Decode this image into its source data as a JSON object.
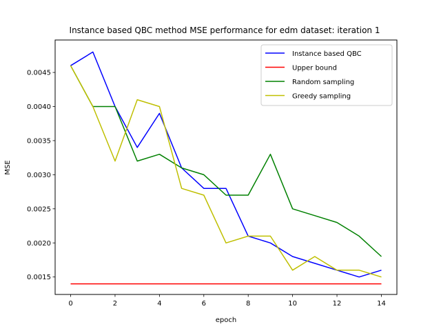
{
  "chart_data": {
    "type": "line",
    "title": "Instance based QBC method MSE performance for edm dataset: iteration 1",
    "xlabel": "epoch",
    "ylabel": "MSE",
    "x": [
      0,
      1,
      2,
      3,
      4,
      5,
      6,
      7,
      8,
      9,
      10,
      11,
      12,
      13,
      14
    ],
    "xlim": [
      -0.7,
      14.7
    ],
    "ylim": [
      0.001244,
      0.004976
    ],
    "xticks": [
      0,
      2,
      4,
      6,
      8,
      10,
      12,
      14
    ],
    "xtick_labels": [
      "0",
      "2",
      "4",
      "6",
      "8",
      "10",
      "12",
      "14"
    ],
    "yticks": [
      0.0015,
      0.002,
      0.0025,
      0.003,
      0.0035,
      0.004,
      0.0045
    ],
    "ytick_labels": [
      "0.0015",
      "0.0020",
      "0.0025",
      "0.0030",
      "0.0035",
      "0.0040",
      "0.0045"
    ],
    "grid": false,
    "legend_position": "top-right",
    "series": [
      {
        "name": "Instance based QBC",
        "color": "#0000ff",
        "values": [
          0.0046,
          0.0048,
          0.004,
          0.0034,
          0.0039,
          0.0031,
          0.0028,
          0.0028,
          0.0021,
          0.002,
          0.0018,
          0.0017,
          0.0016,
          0.0015,
          0.0016
        ]
      },
      {
        "name": "Upper bound",
        "color": "#ff0000",
        "values": [
          0.0014,
          0.0014,
          0.0014,
          0.0014,
          0.0014,
          0.0014,
          0.0014,
          0.0014,
          0.0014,
          0.0014,
          0.0014,
          0.0014,
          0.0014,
          0.0014,
          0.0014
        ]
      },
      {
        "name": "Random sampling",
        "color": "#008000",
        "values": [
          0.0046,
          0.004,
          0.004,
          0.0032,
          0.0033,
          0.0031,
          0.003,
          0.0027,
          0.0027,
          0.0033,
          0.0025,
          0.0024,
          0.0023,
          0.0021,
          0.0018
        ]
      },
      {
        "name": "Greedy sampling",
        "color": "#bfbf00",
        "values": [
          0.0046,
          0.004,
          0.0032,
          0.0041,
          0.004,
          0.0028,
          0.0027,
          0.002,
          0.0021,
          0.0021,
          0.0016,
          0.0018,
          0.0016,
          0.0016,
          0.0015
        ]
      }
    ]
  }
}
